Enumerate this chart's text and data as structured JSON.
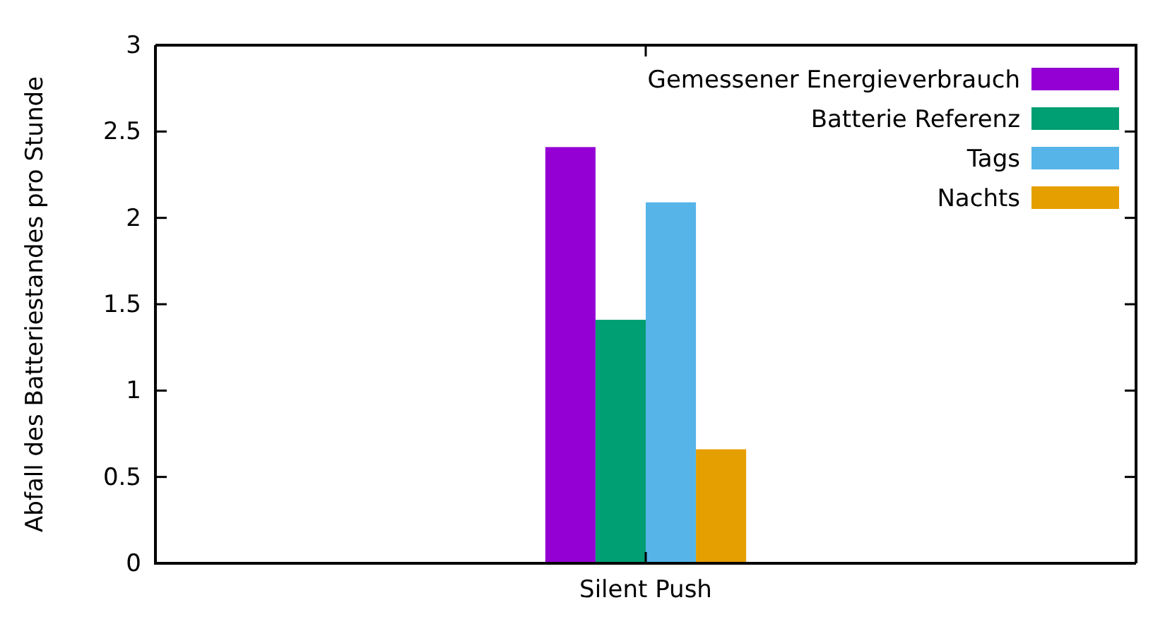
{
  "chart_data": {
    "type": "bar",
    "ylabel": "Abfall des Batteriestandes pro Stunde",
    "categories": [
      "Silent Push"
    ],
    "series": [
      {
        "name": "Gemessener Energieverbrauch",
        "color": "#9400d3",
        "values": [
          2.41
        ]
      },
      {
        "name": "Batterie Referenz",
        "color": "#009e73",
        "values": [
          1.41
        ]
      },
      {
        "name": "Tags",
        "color": "#56b4e9",
        "values": [
          2.09
        ]
      },
      {
        "name": "Nachts",
        "color": "#e69f00",
        "values": [
          0.66
        ]
      }
    ],
    "ylim": [
      0,
      3
    ],
    "yticks": [
      0,
      0.5,
      1,
      1.5,
      2,
      2.5,
      3
    ],
    "legend": "top right"
  }
}
